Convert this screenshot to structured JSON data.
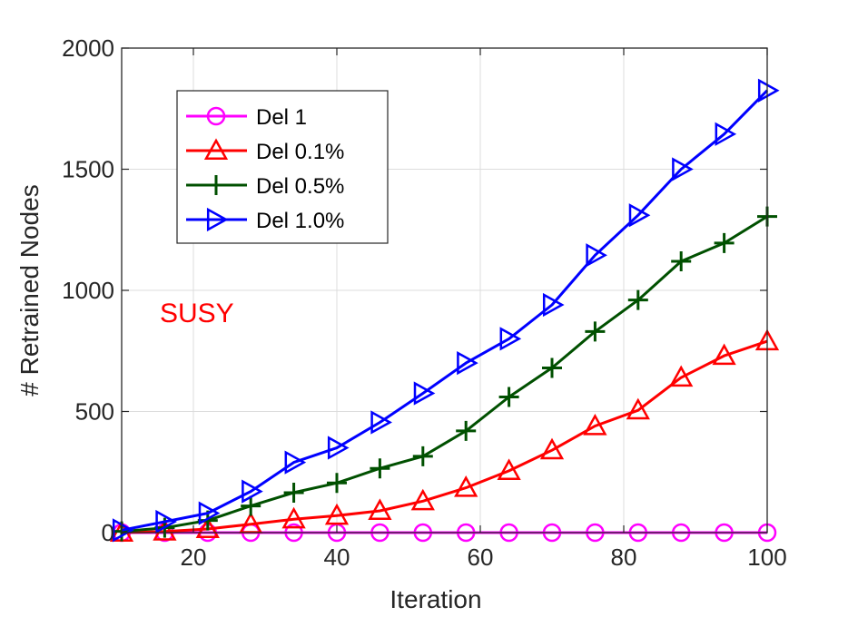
{
  "chart_data": {
    "type": "line",
    "title": "",
    "xlabel": "Iteration",
    "ylabel": "# Retrained Nodes",
    "xlim": [
      10,
      100
    ],
    "ylim": [
      0,
      2000
    ],
    "x_ticks": [
      20,
      40,
      60,
      80,
      100
    ],
    "y_ticks": [
      0,
      500,
      1000,
      1500,
      2000
    ],
    "x_tick_labels": [
      "20",
      "40",
      "60",
      "80",
      "100"
    ],
    "y_tick_labels": [
      "0",
      "500",
      "1000",
      "1500",
      "2000"
    ],
    "grid": true,
    "legend_position": "top-left",
    "annotation": {
      "text": "SUSY",
      "color": "#ff0000"
    },
    "series": [
      {
        "name": "Del 1",
        "color": "#ff00ff",
        "marker": "circle",
        "x": [
          10,
          16,
          22,
          28,
          34,
          40,
          46,
          52,
          58,
          64,
          70,
          76,
          82,
          88,
          94,
          100
        ],
        "y": [
          0,
          0,
          0,
          0,
          0,
          0,
          0,
          0,
          0,
          0,
          0,
          0,
          0,
          0,
          0,
          0
        ]
      },
      {
        "name": "Del 0.1%",
        "color": "#ff0000",
        "marker": "triangle-up",
        "x": [
          10,
          16,
          22,
          28,
          34,
          40,
          46,
          52,
          58,
          64,
          70,
          76,
          82,
          88,
          94,
          100
        ],
        "y": [
          0,
          5,
          15,
          35,
          55,
          70,
          90,
          130,
          185,
          255,
          340,
          440,
          505,
          640,
          730,
          790
        ]
      },
      {
        "name": "Del 0.5%",
        "color": "#005000",
        "marker": "plus",
        "x": [
          10,
          16,
          22,
          28,
          34,
          40,
          46,
          52,
          58,
          64,
          70,
          76,
          82,
          88,
          94,
          100
        ],
        "y": [
          5,
          20,
          50,
          110,
          165,
          205,
          265,
          315,
          420,
          560,
          680,
          830,
          960,
          1120,
          1195,
          1305
        ]
      },
      {
        "name": "Del 1.0%",
        "color": "#0000ff",
        "marker": "triangle-right",
        "x": [
          10,
          16,
          22,
          28,
          34,
          40,
          46,
          52,
          58,
          64,
          70,
          76,
          82,
          88,
          94,
          100
        ],
        "y": [
          10,
          45,
          80,
          170,
          290,
          350,
          455,
          575,
          700,
          800,
          940,
          1145,
          1310,
          1500,
          1645,
          1825
        ]
      }
    ]
  }
}
